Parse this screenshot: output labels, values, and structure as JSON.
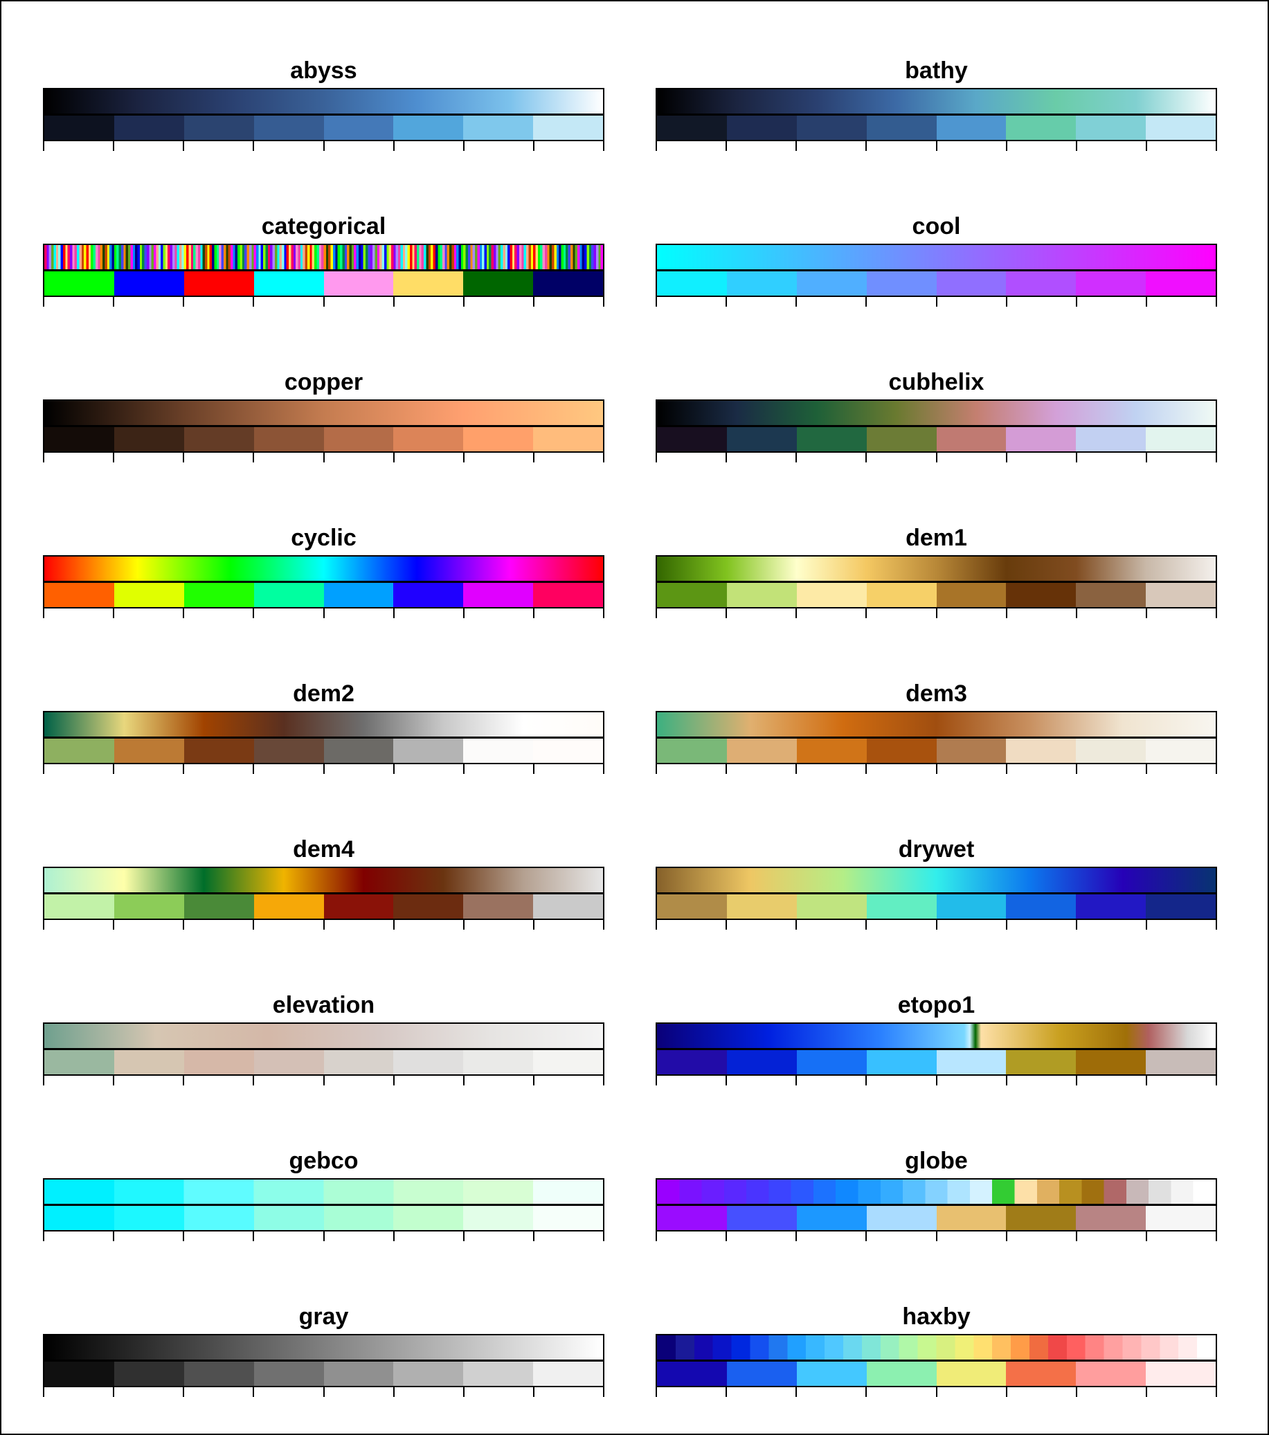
{
  "chart_data": [
    {
      "type": "colorbar",
      "title": "abyss",
      "gradient": [
        "#000000",
        "#1b2340",
        "#2a4070",
        "#3a6299",
        "#4e8ed0",
        "#7cc2ec",
        "#ffffff"
      ],
      "segments": [
        "#0d1220",
        "#1e2c52",
        "#2b4470",
        "#365c92",
        "#4479b8",
        "#52a6dc",
        "#7fc8ec",
        "#c4e8f6"
      ],
      "ticks": 9
    },
    {
      "type": "colorbar",
      "title": "bathy",
      "gradient": [
        "#000000",
        "#1b2440",
        "#2a4070",
        "#3c6aa6",
        "#5aa8c8",
        "#6acca8",
        "#80d0d0",
        "#ffffff"
      ],
      "segments": [
        "#111827",
        "#1e2c52",
        "#283f6c",
        "#335c90",
        "#4e96d0",
        "#66ccaa",
        "#80d0d6",
        "#c4e8f6"
      ],
      "ticks": 9
    },
    {
      "type": "colorbar",
      "title": "categorical",
      "striped": true,
      "stripes": [
        "#ff0066",
        "#00ff00",
        "#0000ff",
        "#ffff00",
        "#ff00ff",
        "#00ffff",
        "#ff8800",
        "#8800ff",
        "#00ff88",
        "#88ff00",
        "#ff0000",
        "#0088ff",
        "#ffaa88",
        "#224400",
        "#aa88ff",
        "#ff88cc",
        "#008844",
        "#ffdd66",
        "#000088",
        "#88ffee",
        "#cc4400",
        "#66aa22",
        "#ee44aa",
        "#4444ff"
      ],
      "segments": [
        "#00ff00",
        "#0000ff",
        "#ff0000",
        "#00ffff",
        "#ff99ee",
        "#ffdd66",
        "#006600",
        "#000066"
      ],
      "ticks": 9
    },
    {
      "type": "colorbar",
      "title": "cool",
      "gradient": [
        "#00ffff",
        "#ff00ff"
      ],
      "segments": [
        "#10efff",
        "#30cfff",
        "#50afff",
        "#708fff",
        "#906fff",
        "#b04fff",
        "#d02fff",
        "#f00fff"
      ],
      "ticks": 9
    },
    {
      "type": "colorbar",
      "title": "copper",
      "gradient": [
        "#000000",
        "#6a4028",
        "#c47c50",
        "#ffa070",
        "#ffc880"
      ],
      "segments": [
        "#140c08",
        "#3c2416",
        "#643c26",
        "#8c5436",
        "#b46c48",
        "#dc8458",
        "#ffa06a",
        "#ffbc7c"
      ],
      "ticks": 9
    },
    {
      "type": "colorbar",
      "title": "cubhelix",
      "gradient": [
        "#000000",
        "#1a2b45",
        "#1e6038",
        "#6a7a30",
        "#c47f70",
        "#d3a0d8",
        "#c0d2f2",
        "#f0faf4"
      ],
      "segments": [
        "#180f20",
        "#1c3850",
        "#216840",
        "#6c7c36",
        "#c07a72",
        "#d49cd6",
        "#c2d0f2",
        "#e2f4ee"
      ],
      "ticks": 9
    },
    {
      "type": "colorbar",
      "title": "cyclic",
      "gradient": [
        "#ff0000",
        "#ffff00",
        "#00ff00",
        "#00ffff",
        "#0000ff",
        "#ff00ff",
        "#ff0000"
      ],
      "segments": [
        "#ff6000",
        "#e0ff00",
        "#20ff00",
        "#00ffa0",
        "#00a0ff",
        "#2000ff",
        "#e000ff",
        "#ff0060"
      ],
      "ticks": 9
    },
    {
      "type": "colorbar",
      "title": "dem1",
      "gradient": [
        "#336600",
        "#81c31f",
        "#ffffcc",
        "#f4c862",
        "#b88838",
        "#683c0c",
        "#804c20",
        "#c8b8a8",
        "#f4f0ec"
      ],
      "segments": [
        "#5c9614",
        "#c2e278",
        "#fdeaa6",
        "#f6d068",
        "#a87428",
        "#663208",
        "#8a6240",
        "#d8c8ba"
      ],
      "ticks": 9
    },
    {
      "type": "colorbar",
      "title": "dem2",
      "gradient": [
        "#006147",
        "#e8d77d",
        "#a14300",
        "#5a3020",
        "#6e6e6e",
        "#c8c8c8",
        "#ffffff",
        "#fffcf8"
      ],
      "segments": [
        "#8eb060",
        "#bc7a34",
        "#7a3a14",
        "#684838",
        "#6c6a66",
        "#b4b4b4",
        "#fcfbfa",
        "#fffcfa"
      ],
      "ticks": 9
    },
    {
      "type": "colorbar",
      "title": "dem3",
      "gradient": [
        "#3cb080",
        "#e0b070",
        "#d06c10",
        "#a04e10",
        "#c89060",
        "#f0e4d0",
        "#f8f6f0"
      ],
      "segments": [
        "#7ab878",
        "#deae74",
        "#d07418",
        "#a8520e",
        "#b07c50",
        "#f0dcc2",
        "#eeeadc",
        "#f6f4ee"
      ],
      "ticks": 9
    },
    {
      "type": "colorbar",
      "title": "dem4",
      "gradient": [
        "#aef1d2",
        "#ffffaa",
        "#006e2a",
        "#f0b400",
        "#800000",
        "#6a3410",
        "#b4a090",
        "#e6e6e6"
      ],
      "segments": [
        "#c2f2a8",
        "#8ccc58",
        "#4a8a38",
        "#f6a808",
        "#8a1208",
        "#6c2c10",
        "#9a7260",
        "#cacaca"
      ],
      "ticks": 9
    },
    {
      "type": "colorbar",
      "title": "drywet",
      "gradient": [
        "#86612a",
        "#eec764",
        "#b4ee87",
        "#32eeeb",
        "#0c78ee",
        "#2601b7",
        "#083371"
      ],
      "segments": [
        "#b08c48",
        "#e8cc6c",
        "#c0e480",
        "#62eec2",
        "#22bcea",
        "#1264e2",
        "#2218c4",
        "#14268a"
      ],
      "ticks": 9
    },
    {
      "type": "colorbar",
      "title": "elevation",
      "gradient": [
        "#6fa08e",
        "#d6c6b2",
        "#d4b8a8",
        "#d6c8c4",
        "#e6e4e2",
        "#f4f4f4"
      ],
      "segments": [
        "#9ab8a0",
        "#d6c6b2",
        "#d6b8a8",
        "#d4c0b6",
        "#d8d2cc",
        "#e0dfde",
        "#eaeae8",
        "#f4f4f2"
      ],
      "ticks": 9
    },
    {
      "type": "colorbar",
      "title": "etopo1",
      "gradient": [
        "#0a0079",
        "#0020e0",
        "#2a80ff",
        "#7ad8ff",
        "#c8f0ff",
        "#006600",
        "#fde0a8",
        "#c9a020",
        "#a07008",
        "#b06060",
        "#d8d8d8",
        "#ffffff"
      ],
      "gradientStops": [
        0,
        20,
        40,
        55,
        56,
        57,
        58,
        72,
        84,
        88,
        95,
        100
      ],
      "segments": [
        "#220ca8",
        "#0422d6",
        "#1670f6",
        "#38c0ff",
        "#b8e6ff",
        "#b09c24",
        "#9e6c08",
        "#c8bcb8"
      ],
      "ticks": 9
    },
    {
      "type": "colorbar",
      "title": "gebco",
      "stepped": true,
      "steps": [
        "#00f0ff",
        "#20f8ff",
        "#60fcff",
        "#8cfeea",
        "#acfed6",
        "#c8fed0",
        "#d8fed4",
        "#effffa"
      ],
      "segments": [
        "#00f0ff",
        "#1cf8ff",
        "#58fcff",
        "#8efde6",
        "#a8fed6",
        "#c2fece",
        "#e2fee8",
        "#f6fffa"
      ],
      "ticks": 9
    },
    {
      "type": "colorbar",
      "title": "globe",
      "steps": [
        "#9900ff",
        "#7a12ff",
        "#6a1eff",
        "#5a28ff",
        "#4a34ff",
        "#3c44ff",
        "#2c58ff",
        "#1c72ff",
        "#1088ff",
        "#209cff",
        "#34acff",
        "#58c0ff",
        "#84d2ff",
        "#aee4ff",
        "#d4f2ff",
        "#33cc33",
        "#fde0a8",
        "#e0b060",
        "#b89020",
        "#a07010",
        "#b06868",
        "#c8b8b8",
        "#e0e0e0",
        "#f4f4f4",
        "#ffffff"
      ],
      "segments": [
        "#9a0cff",
        "#4650ff",
        "#1c98ff",
        "#aadcff",
        "#e8c070",
        "#a07c18",
        "#b88484",
        "#f6f6f6"
      ],
      "ticks": 9
    },
    {
      "type": "colorbar",
      "title": "gray",
      "gradient": [
        "#000000",
        "#ffffff"
      ],
      "segments": [
        "#101010",
        "#303030",
        "#505050",
        "#707070",
        "#909090",
        "#b0b0b0",
        "#d0d0d0",
        "#f0f0f0"
      ],
      "ticks": 9
    },
    {
      "type": "colorbar",
      "title": "haxby",
      "steps": [
        "#0a0079",
        "#1a1a98",
        "#1408b0",
        "#0a14c8",
        "#0028e0",
        "#1450f0",
        "#2078f0",
        "#20a0ff",
        "#38b8ff",
        "#50c8ff",
        "#6ad8f0",
        "#80e6d8",
        "#98f0c0",
        "#b0f8a8",
        "#c8f890",
        "#d8f080",
        "#f0f078",
        "#ffe070",
        "#ffc060",
        "#ff9c48",
        "#f06c40",
        "#f04848",
        "#ff6060",
        "#ff8484",
        "#ffa0a0",
        "#ffb4b4",
        "#ffc8c8",
        "#ffdcdc",
        "#ffecec",
        "#ffffff"
      ],
      "segments": [
        "#1408b0",
        "#1a60f0",
        "#44c8ff",
        "#8cf0b0",
        "#f0ec78",
        "#f47048",
        "#ff9e9e",
        "#ffecec"
      ],
      "ticks": 9
    }
  ]
}
